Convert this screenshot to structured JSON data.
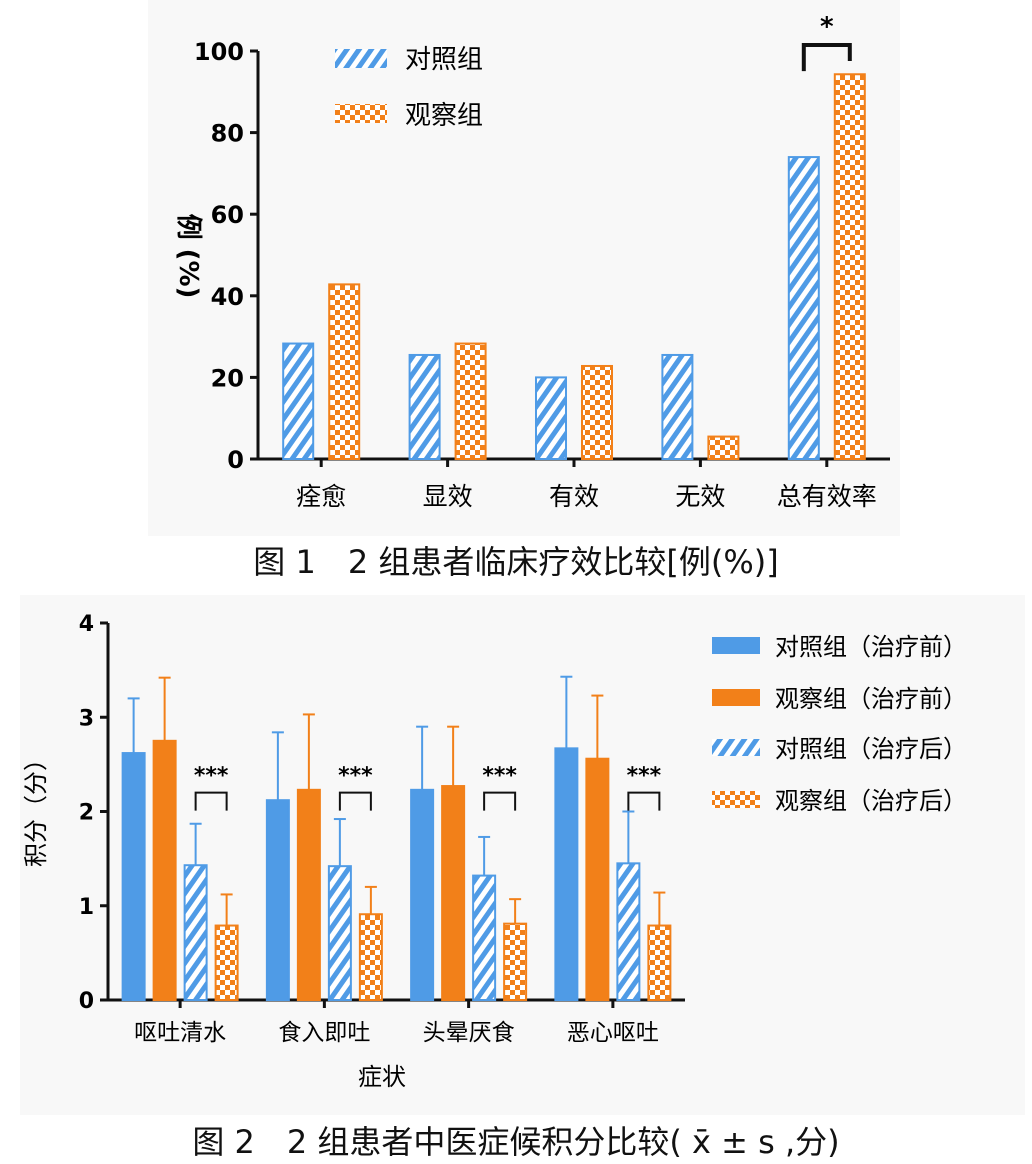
{
  "colors": {
    "control": "#4f9be6",
    "observe": "#f28019"
  },
  "figure1": {
    "caption": "图 1　2 组患者临床疗效比较[例(%)]",
    "legend": [
      "对照组",
      "观察组"
    ],
    "ylabel": "例 (%)",
    "significance": "*"
  },
  "figure2": {
    "caption": "图 2　2 组患者中医症候积分比较( x̄ ± s ,分)",
    "legend": [
      "对照组（治疗前）",
      "观察组（治疗前）",
      "对照组（治疗后）",
      "观察组（治疗后）"
    ],
    "ylabel": "积分（分）",
    "xlabel": "症状",
    "significance": "***"
  },
  "chart_data": [
    {
      "type": "bar",
      "categories": [
        "痊愈",
        "显效",
        "有效",
        "无效",
        "总有效率"
      ],
      "series": [
        {
          "name": "对照组",
          "values": [
            28.3,
            25.5,
            20.0,
            25.5,
            74.0
          ]
        },
        {
          "name": "观察组",
          "values": [
            42.8,
            28.3,
            22.8,
            5.5,
            94.3
          ]
        }
      ],
      "ylabel": "例 (%)",
      "ylim": [
        0,
        100
      ],
      "yticks": [
        0,
        20,
        40,
        60,
        80,
        100
      ],
      "annotations": [
        {
          "category": "总有效率",
          "text": "*"
        }
      ],
      "legend_position": "top-left"
    },
    {
      "type": "bar",
      "categories": [
        "呕吐清水",
        "食入即吐",
        "头晕厌食",
        "恶心呕吐"
      ],
      "series": [
        {
          "name": "对照组（治疗前）",
          "values": [
            2.62,
            2.12,
            2.23,
            2.67
          ],
          "errors": [
            0.58,
            0.72,
            0.67,
            0.76
          ]
        },
        {
          "name": "观察组（治疗前）",
          "values": [
            2.75,
            2.23,
            2.27,
            2.56
          ],
          "errors": [
            0.67,
            0.8,
            0.63,
            0.67
          ]
        },
        {
          "name": "对照组（治疗后）",
          "values": [
            1.43,
            1.42,
            1.32,
            1.45
          ],
          "errors": [
            0.44,
            0.5,
            0.41,
            0.55
          ]
        },
        {
          "name": "观察组（治疗后）",
          "values": [
            0.79,
            0.91,
            0.81,
            0.79
          ],
          "errors": [
            0.33,
            0.29,
            0.26,
            0.35
          ]
        }
      ],
      "xlabel": "症状",
      "ylabel": "积分（分）",
      "ylim": [
        0,
        4
      ],
      "yticks": [
        0,
        1,
        2,
        3,
        4
      ],
      "annotations": [
        {
          "category": "呕吐清水",
          "text": "***"
        },
        {
          "category": "食入即吐",
          "text": "***"
        },
        {
          "category": "头晕厌食",
          "text": "***"
        },
        {
          "category": "恶心呕吐",
          "text": "***"
        }
      ],
      "legend_position": "right"
    }
  ]
}
